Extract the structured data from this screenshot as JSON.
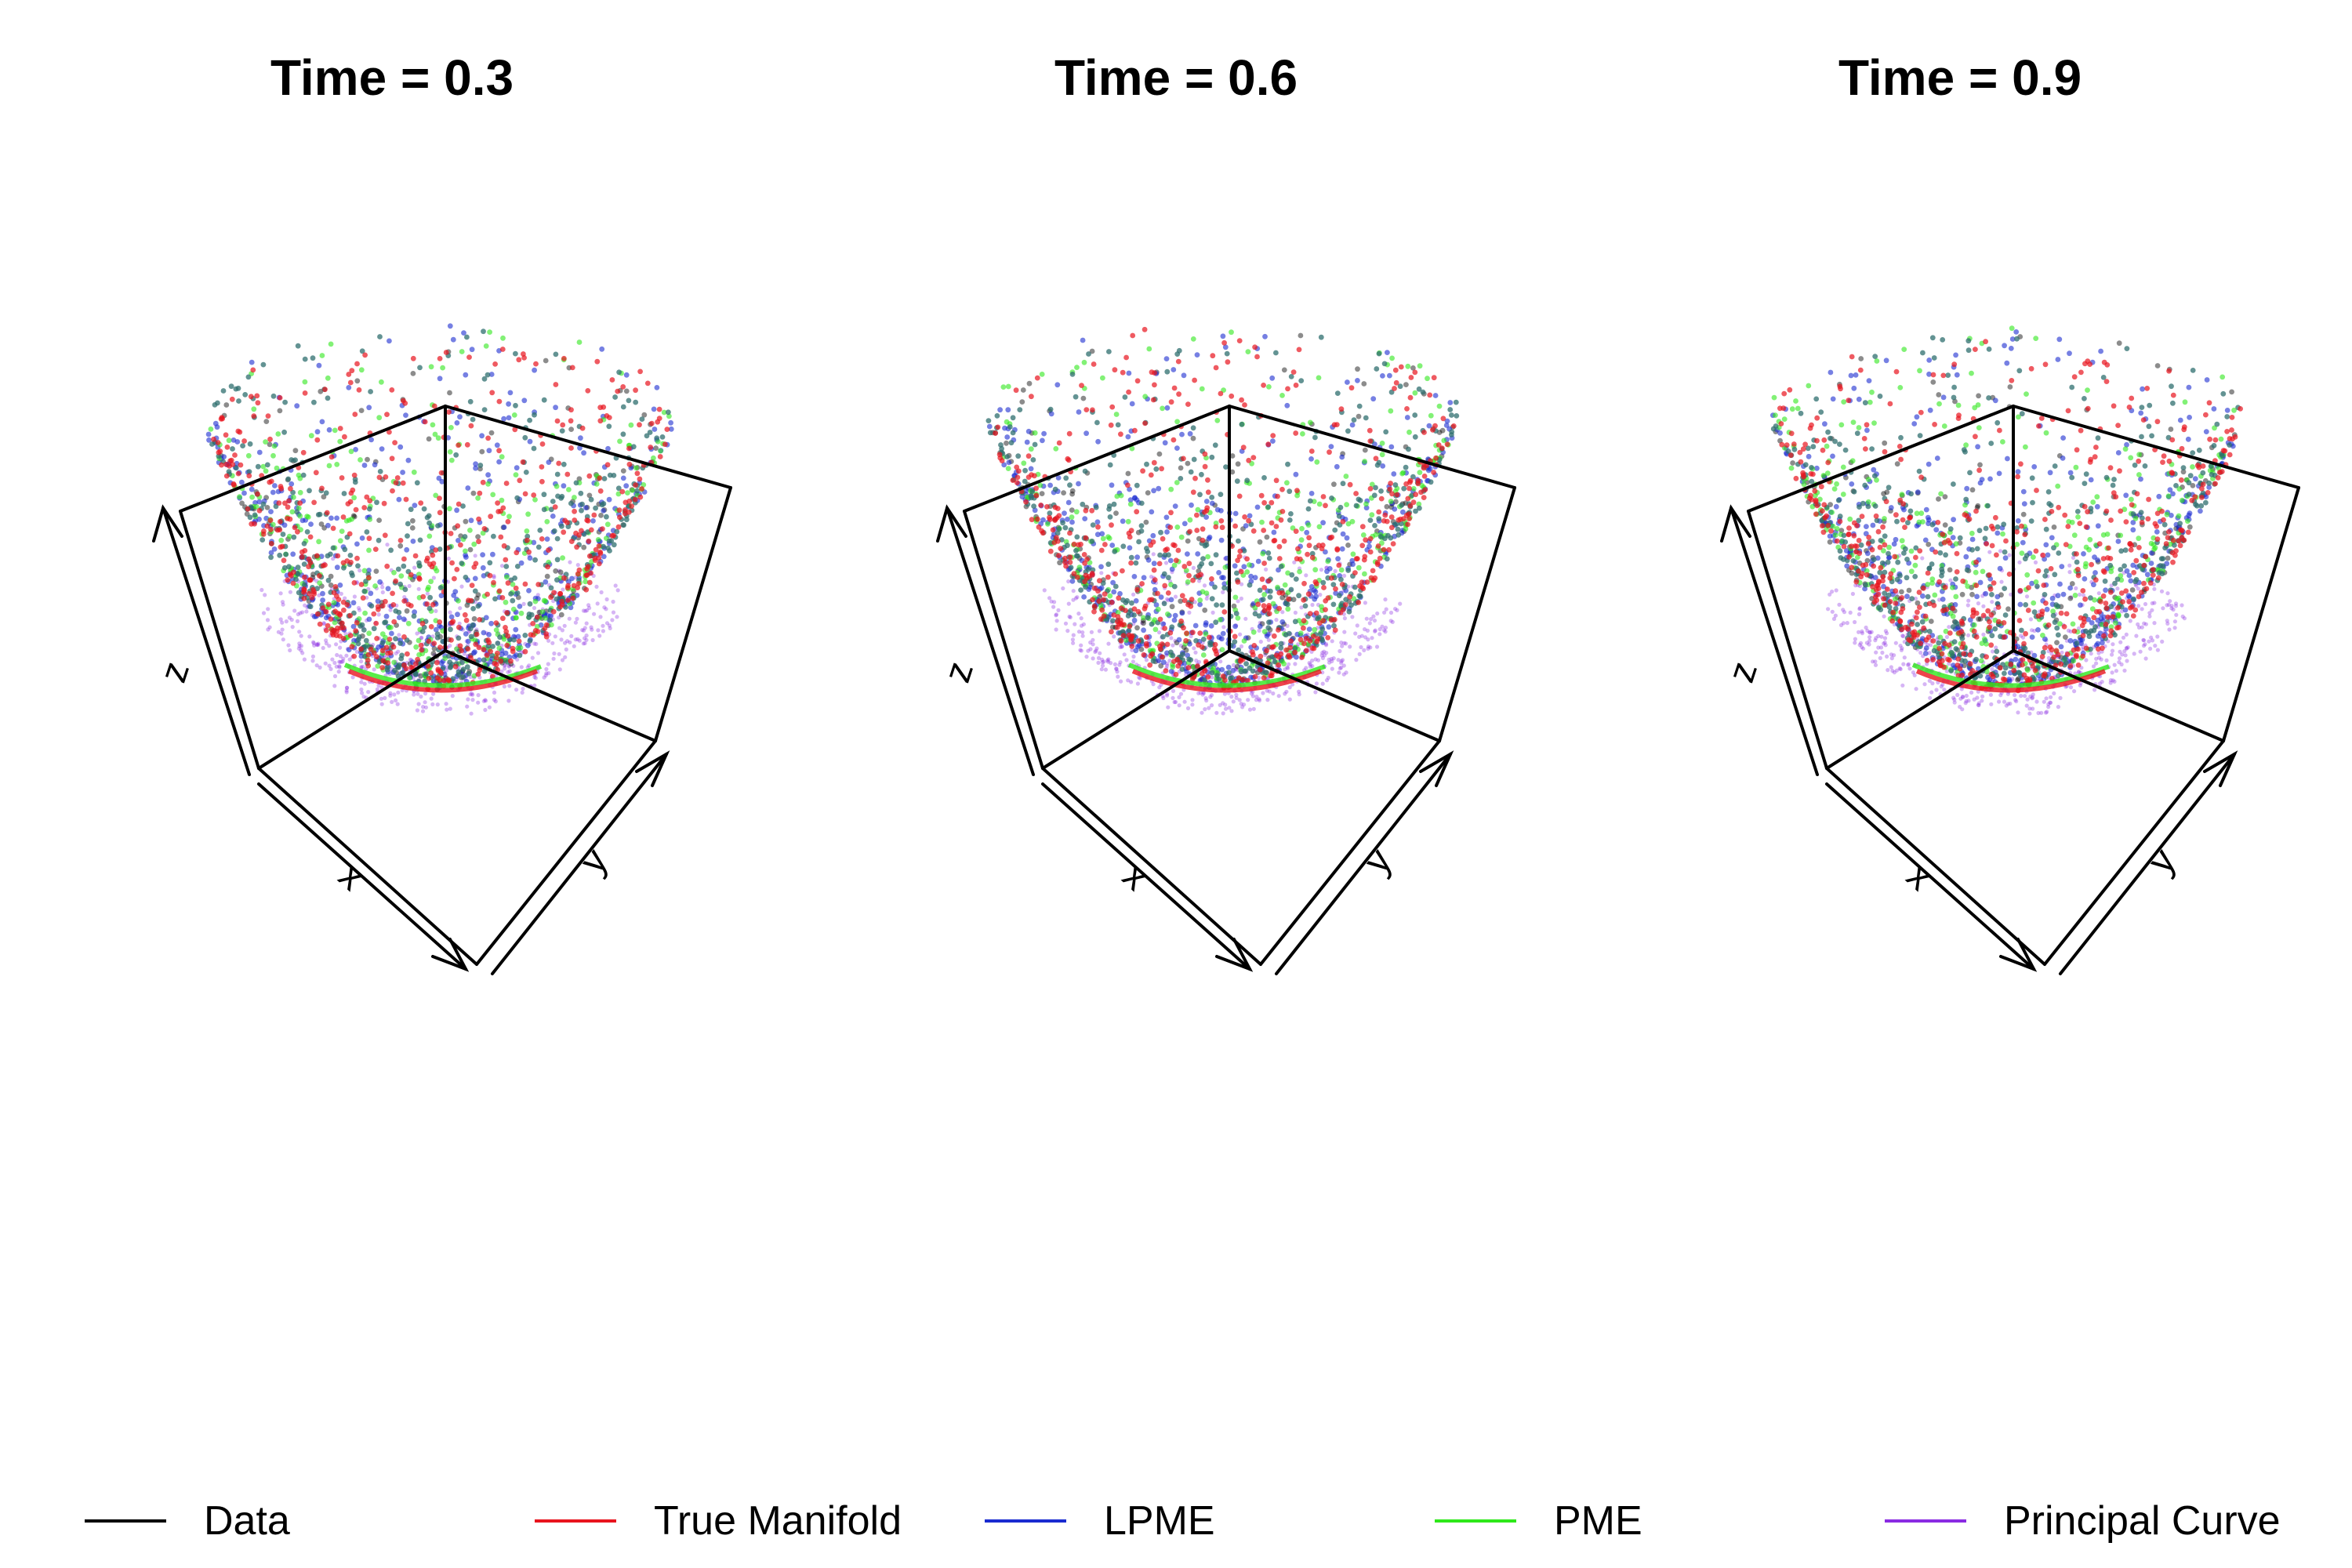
{
  "chart_data": {
    "type": "scatter",
    "axes": {
      "x_label": "x",
      "y_label": "y",
      "z_label": "z",
      "projection": "3D box, perspective view",
      "grid": false
    },
    "legend": {
      "placement": "bottom",
      "entries": [
        {
          "name": "Data",
          "color": "#000000"
        },
        {
          "name": "True Manifold",
          "color": "#e8141e"
        },
        {
          "name": "LPME",
          "color": "#1a2bd0"
        },
        {
          "name": "PME",
          "color": "#2ee81a"
        },
        {
          "name": "Principal Curve",
          "color": "#8a2be2"
        }
      ]
    },
    "panels": [
      {
        "title": "Time = 0.3",
        "time": 0.3
      },
      {
        "title": "Time = 0.6",
        "time": 0.6
      },
      {
        "title": "Time = 0.9",
        "time": 0.9
      }
    ]
  }
}
